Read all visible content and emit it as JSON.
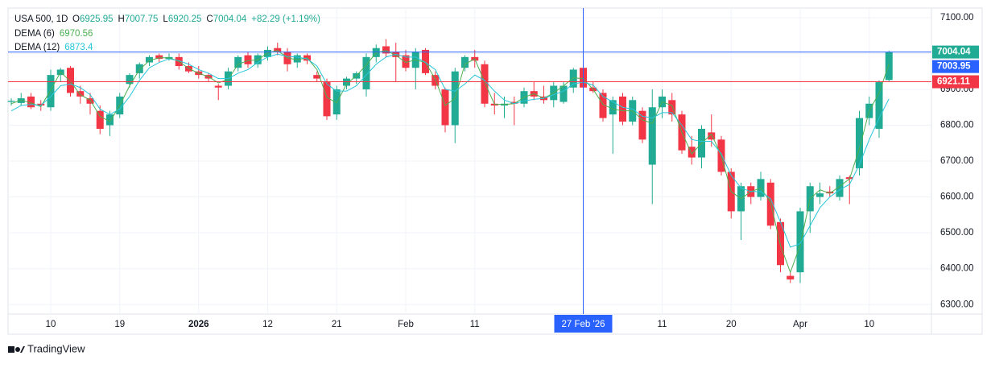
{
  "chart_data": {
    "type": "candlestick",
    "header": {
      "symbol": "USA 500, 1D",
      "labels": [
        "O",
        "H",
        "L",
        "C"
      ],
      "change": "+82.29 (+1.19%)"
    },
    "brand": "TradingView",
    "up_color": "#22ab94",
    "down_color": "#f23645",
    "categories": [
      null,
      null,
      null,
      null,
      "10",
      null,
      null,
      null,
      null,
      null,
      null,
      "19",
      null,
      null,
      null,
      null,
      null,
      null,
      null,
      "2026",
      null,
      null,
      null,
      null,
      null,
      null,
      "12",
      null,
      null,
      null,
      null,
      null,
      null,
      "21",
      null,
      null,
      null,
      null,
      null,
      null,
      "Feb",
      null,
      null,
      null,
      null,
      null,
      null,
      "11",
      null,
      null,
      null,
      null,
      null,
      null,
      null,
      null,
      null,
      null,
      "27 Feb '26",
      null,
      null,
      null,
      null,
      null,
      null,
      null,
      "11",
      null,
      null,
      null,
      null,
      null,
      null,
      "20",
      null,
      null,
      null,
      null,
      null,
      null,
      "Apr",
      null,
      null,
      null,
      null,
      null,
      null,
      "10",
      null,
      null
    ],
    "open": [
      6865,
      6862,
      6880,
      6860,
      6850,
      6940,
      6960,
      6895,
      6875,
      6840,
      6800,
      6830,
      6915,
      6945,
      6975,
      6995,
      6985,
      6990,
      6965,
      6950,
      6940,
      6910,
      6910,
      6960,
      6995,
      6970,
      6990,
      7015,
      7005,
      6975,
      6995,
      6940,
      6920,
      6830,
      6910,
      6930,
      6900,
      6990,
      7020,
      7005,
      6995,
      6960,
      7010,
      6940,
      6900,
      6800,
      6960,
      6990,
      6970,
      6860,
      6855,
      6865,
      6860,
      6895,
      6880,
      6870,
      6865,
      6905,
      6960,
      6905,
      6890,
      6830,
      6880,
      6810,
      6840,
      6690,
      6850,
      6870,
      6830,
      6740,
      6710,
      6780,
      6760,
      6670,
      6560,
      6630,
      6600,
      6640,
      6530,
      6380,
      6390,
      6560,
      6600,
      6615,
      6600,
      6655,
      6680,
      6820,
      6790,
      6925.95
    ],
    "high": [
      6875,
      6890,
      6890,
      6870,
      6955,
      6960,
      6965,
      6910,
      6890,
      6855,
      6840,
      6890,
      6945,
      6975,
      6995,
      7000,
      7000,
      7000,
      6975,
      6965,
      6945,
      6915,
      6960,
      6995,
      7005,
      7000,
      7020,
      7030,
      7015,
      7000,
      7000,
      6950,
      6930,
      6910,
      6935,
      6950,
      7000,
      7025,
      7040,
      7030,
      7010,
      7015,
      7015,
      6950,
      6905,
      6960,
      6995,
      7010,
      6980,
      6890,
      6880,
      6880,
      6905,
      6920,
      6910,
      6920,
      6920,
      6960,
      6965,
      6920,
      6900,
      6880,
      6890,
      6880,
      6850,
      6900,
      6900,
      6890,
      6840,
      6770,
      6800,
      6830,
      6770,
      6680,
      6640,
      6640,
      6670,
      6650,
      6540,
      6390,
      6570,
      6640,
      6640,
      6630,
      6660,
      6660,
      6840,
      6880,
      6925,
      7007.75
    ],
    "low": [
      6855,
      6855,
      6845,
      6840,
      6840,
      6920,
      6880,
      6860,
      6830,
      6775,
      6770,
      6820,
      6905,
      6930,
      6965,
      6975,
      6980,
      6955,
      6945,
      6930,
      6920,
      6870,
      6900,
      6950,
      6960,
      6960,
      6980,
      6995,
      6950,
      6960,
      6970,
      6920,
      6815,
      6815,
      6900,
      6915,
      6880,
      6975,
      6990,
      6920,
      6950,
      6900,
      6940,
      6900,
      6780,
      6750,
      6950,
      6960,
      6850,
      6830,
      6820,
      6800,
      6850,
      6870,
      6860,
      6850,
      6860,
      6890,
      6900,
      6890,
      6810,
      6720,
      6800,
      6800,
      6750,
      6580,
      6820,
      6810,
      6720,
      6690,
      6680,
      6740,
      6660,
      6540,
      6480,
      6580,
      6590,
      6510,
      6390,
      6360,
      6360,
      6500,
      6580,
      6600,
      6590,
      6580,
      6660,
      6800,
      6765,
      6920.25
    ],
    "close": [
      6868,
      6875,
      6850,
      6855,
      6940,
      6955,
      6890,
      6880,
      6860,
      6790,
      6830,
      6880,
      6940,
      6970,
      6990,
      6985,
      6990,
      6965,
      6950,
      6940,
      6930,
      6905,
      6950,
      6990,
      6970,
      6995,
      7010,
      7005,
      6970,
      6995,
      6980,
      6930,
      6825,
      6900,
      6930,
      6945,
      6990,
      7015,
      7000,
      6990,
      6960,
      7005,
      6945,
      6910,
      6800,
      6950,
      6990,
      6980,
      6860,
      6855,
      6860,
      6860,
      6895,
      6880,
      6870,
      6910,
      6910,
      6955,
      6905,
      6895,
      6820,
      6870,
      6810,
      6870,
      6760,
      6850,
      6880,
      6830,
      6730,
      6710,
      6790,
      6760,
      6670,
      6560,
      6630,
      6600,
      6650,
      6520,
      6410,
      6370,
      6560,
      6630,
      6610,
      6610,
      6650,
      6650,
      6820,
      6860,
      6920,
      7004.04
    ],
    "series": [
      {
        "name": "DEMA (6)",
        "color": "#4caf50",
        "values": [
          6860,
          6870,
          6862,
          6852,
          6898,
          6948,
          6922,
          6885,
          6870,
          6825,
          6810,
          6855,
          6910,
          6955,
          6980,
          6988,
          6988,
          6978,
          6958,
          6945,
          6935,
          6918,
          6928,
          6970,
          6980,
          6982,
          7002,
          7008,
          6988,
          6982,
          6988,
          6955,
          6878,
          6862,
          6915,
          6938,
          6968,
          7002,
          7008,
          6995,
          6975,
          6982,
          6975,
          6928,
          6855,
          6875,
          6970,
          6985,
          6920,
          6858,
          6858,
          6860,
          6878,
          6888,
          6875,
          6890,
          6910,
          6932,
          6930,
          6900,
          6858,
          6845,
          6840,
          6840,
          6815,
          6805,
          6865,
          6855,
          6780,
          6720,
          6750,
          6775,
          6715,
          6615,
          6595,
          6615,
          6625,
          6585,
          6465,
          6390,
          6465,
          6595,
          6620,
          6610,
          6630,
          6650,
          6735,
          6840,
          6890,
          6970.56
        ]
      },
      {
        "name": "DEMA (12)",
        "color": "#26c6da",
        "values": [
          6840,
          6855,
          6858,
          6855,
          6880,
          6910,
          6915,
          6905,
          6885,
          6845,
          6830,
          6845,
          6880,
          6925,
          6960,
          6975,
          6985,
          6980,
          6970,
          6955,
          6945,
          6930,
          6930,
          6945,
          6955,
          6975,
          6990,
          6998,
          6992,
          6990,
          6985,
          6965,
          6915,
          6895,
          6895,
          6910,
          6940,
          6970,
          6990,
          6998,
          6990,
          6990,
          6975,
          6955,
          6900,
          6895,
          6915,
          6940,
          6925,
          6895,
          6870,
          6860,
          6868,
          6872,
          6875,
          6885,
          6895,
          6915,
          6920,
          6912,
          6880,
          6865,
          6850,
          6845,
          6825,
          6820,
          6835,
          6835,
          6800,
          6760,
          6755,
          6755,
          6720,
          6660,
          6625,
          6615,
          6615,
          6595,
          6530,
          6460,
          6470,
          6520,
          6570,
          6600,
          6620,
          6635,
          6690,
          6760,
          6820,
          6873.4
        ]
      }
    ],
    "reference_line": {
      "value": 6921.11,
      "color": "#f23645"
    },
    "crosshair": {
      "category": "27 Feb '26",
      "value": 7003.95,
      "color": "#2962ff"
    },
    "ylim": [
      6273.6,
      7126.6
    ],
    "yticks": [
      {
        "value": 6300,
        "label": "6300.00"
      },
      {
        "value": 6400,
        "label": "6400.00"
      },
      {
        "value": 6500,
        "label": "6500.00"
      },
      {
        "value": 6600,
        "label": "6600.00"
      },
      {
        "value": 6700,
        "label": "6700.00"
      },
      {
        "value": 6800,
        "label": "6800.00"
      },
      {
        "value": 6900,
        "label": "6900.00"
      },
      {
        "value": 7000,
        "label": "7000.00"
      },
      {
        "value": 7100,
        "label": "7100.00"
      }
    ],
    "grid": true
  }
}
